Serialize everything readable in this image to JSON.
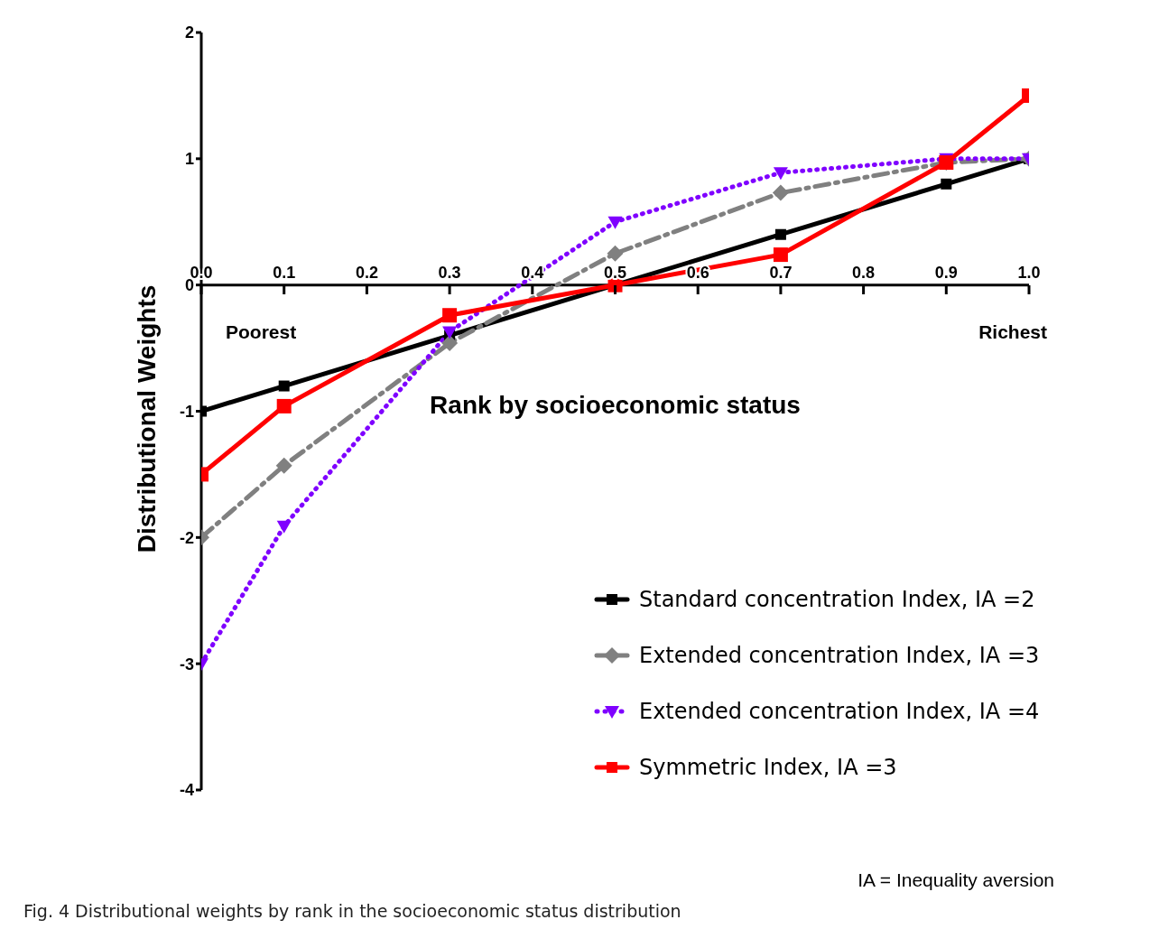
{
  "chart_data": {
    "type": "line",
    "xlabel": "Rank by socioeconomic status",
    "ylabel": "Distributional Weights",
    "x": [
      0,
      0.1,
      0.3,
      0.5,
      0.7,
      0.9,
      1.0
    ],
    "xlim": [
      0,
      1
    ],
    "xticks": [
      {
        "value": 0,
        "label": "0.0"
      },
      0.1,
      0.2,
      0.3,
      0.4,
      0.5,
      0.6,
      0.7,
      0.8,
      0.9,
      {
        "value": 1,
        "label": "1.0"
      }
    ],
    "ylim": [
      -4,
      2
    ],
    "yticks": [
      -4,
      -3,
      -2,
      -1,
      0,
      1,
      2
    ],
    "series": [
      {
        "name": "Standard concentration Index, IA =2",
        "color": "#000000",
        "marker": "square",
        "line_style": "solid",
        "values": [
          -1,
          -0.8,
          -0.4,
          0,
          0.4,
          0.8,
          1
        ]
      },
      {
        "name": "Extended concentration Index, IA =3",
        "color": "#808080",
        "marker": "diamond",
        "line_style": "dashed",
        "values": [
          -2,
          -1.43,
          -0.46,
          0.25,
          0.73,
          0.97,
          1
        ]
      },
      {
        "name": "Extended concentration Index, IA =4",
        "color": "#7f00ff",
        "marker": "triangle",
        "line_style": "dotted",
        "values": [
          -3,
          -1.91,
          -0.37,
          0.5,
          0.89,
          1.0,
          1.0
        ]
      },
      {
        "name": "Symmetric Index, IA =3",
        "color": "#ff0000",
        "marker": "square",
        "line_style": "solid",
        "values": [
          -1.5,
          -0.96,
          -0.24,
          0,
          0.24,
          0.97,
          1.5
        ]
      }
    ],
    "legend": "bottom right",
    "grid": false,
    "annotations": [
      "Poorest",
      "Richest",
      "IA = Inequality aversion",
      "Fig. 4 Distributional weights by rank in the socioeconomic status distribution"
    ]
  }
}
